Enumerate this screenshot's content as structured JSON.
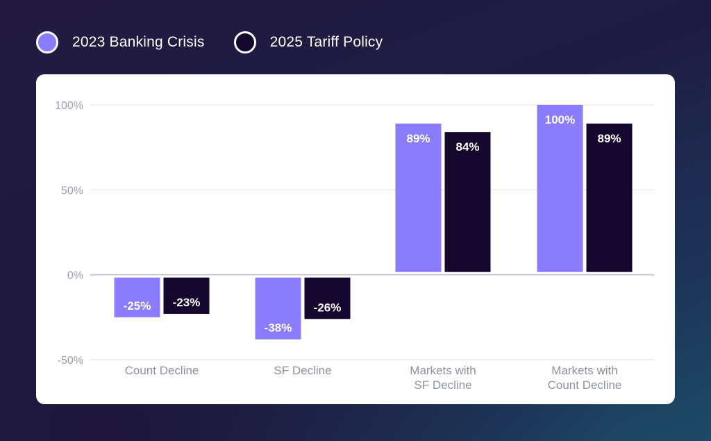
{
  "legend": {
    "items": [
      {
        "label": "2023 Banking Crisis",
        "color": "#8a7cfc"
      },
      {
        "label": "2025 Tariff Policy",
        "color": "#15062e"
      }
    ]
  },
  "chart_data": {
    "type": "bar",
    "categories": [
      [
        "Count Decline"
      ],
      [
        "SF Decline"
      ],
      [
        "Markets with",
        "SF Decline"
      ],
      [
        "Markets with",
        "Count Decline"
      ]
    ],
    "series": [
      {
        "name": "2023 Banking Crisis",
        "color": "#8a7cfc",
        "values": [
          -25,
          -38,
          89,
          100
        ],
        "labels": [
          "-25%",
          "-38%",
          "89%",
          "100%"
        ]
      },
      {
        "name": "2025 Tariff Policy",
        "color": "#15062e",
        "values": [
          -23,
          -26,
          84,
          89
        ],
        "labels": [
          "-23%",
          "-26%",
          "84%",
          "89%"
        ]
      }
    ],
    "yticks": [
      100,
      50,
      0,
      -50
    ],
    "ytick_labels": [
      "100%",
      "50%",
      "0%",
      "-50%"
    ],
    "ylim": [
      -50,
      100
    ],
    "grid": true,
    "legend_position": "top-left"
  }
}
